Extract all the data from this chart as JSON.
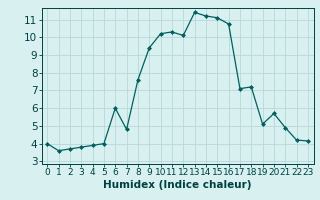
{
  "x": [
    0,
    1,
    2,
    3,
    4,
    5,
    6,
    7,
    8,
    9,
    10,
    11,
    12,
    13,
    14,
    15,
    16,
    17,
    18,
    19,
    20,
    21,
    22,
    23
  ],
  "y": [
    4.0,
    3.6,
    3.7,
    3.8,
    3.9,
    4.0,
    6.0,
    4.8,
    7.6,
    9.4,
    10.2,
    10.3,
    10.1,
    11.4,
    11.2,
    11.1,
    10.75,
    7.1,
    7.2,
    5.1,
    5.7,
    4.9,
    4.2,
    4.15
  ],
  "xlim": [
    -0.5,
    23.5
  ],
  "ylim": [
    2.85,
    11.65
  ],
  "yticks": [
    3,
    4,
    5,
    6,
    7,
    8,
    9,
    10,
    11
  ],
  "xticks": [
    0,
    1,
    2,
    3,
    4,
    5,
    6,
    7,
    8,
    9,
    10,
    11,
    12,
    13,
    14,
    15,
    16,
    17,
    18,
    19,
    20,
    21,
    22,
    23
  ],
  "xlabel": "Humidex (Indice chaleur)",
  "line_color": "#006060",
  "marker": "D",
  "marker_size": 2.0,
  "bg_color": "#d8f0f0",
  "grid_color": "#b8d8d8",
  "xlabel_fontsize": 7.5,
  "tick_fontsize": 6.5,
  "ytick_fontsize": 7.5
}
